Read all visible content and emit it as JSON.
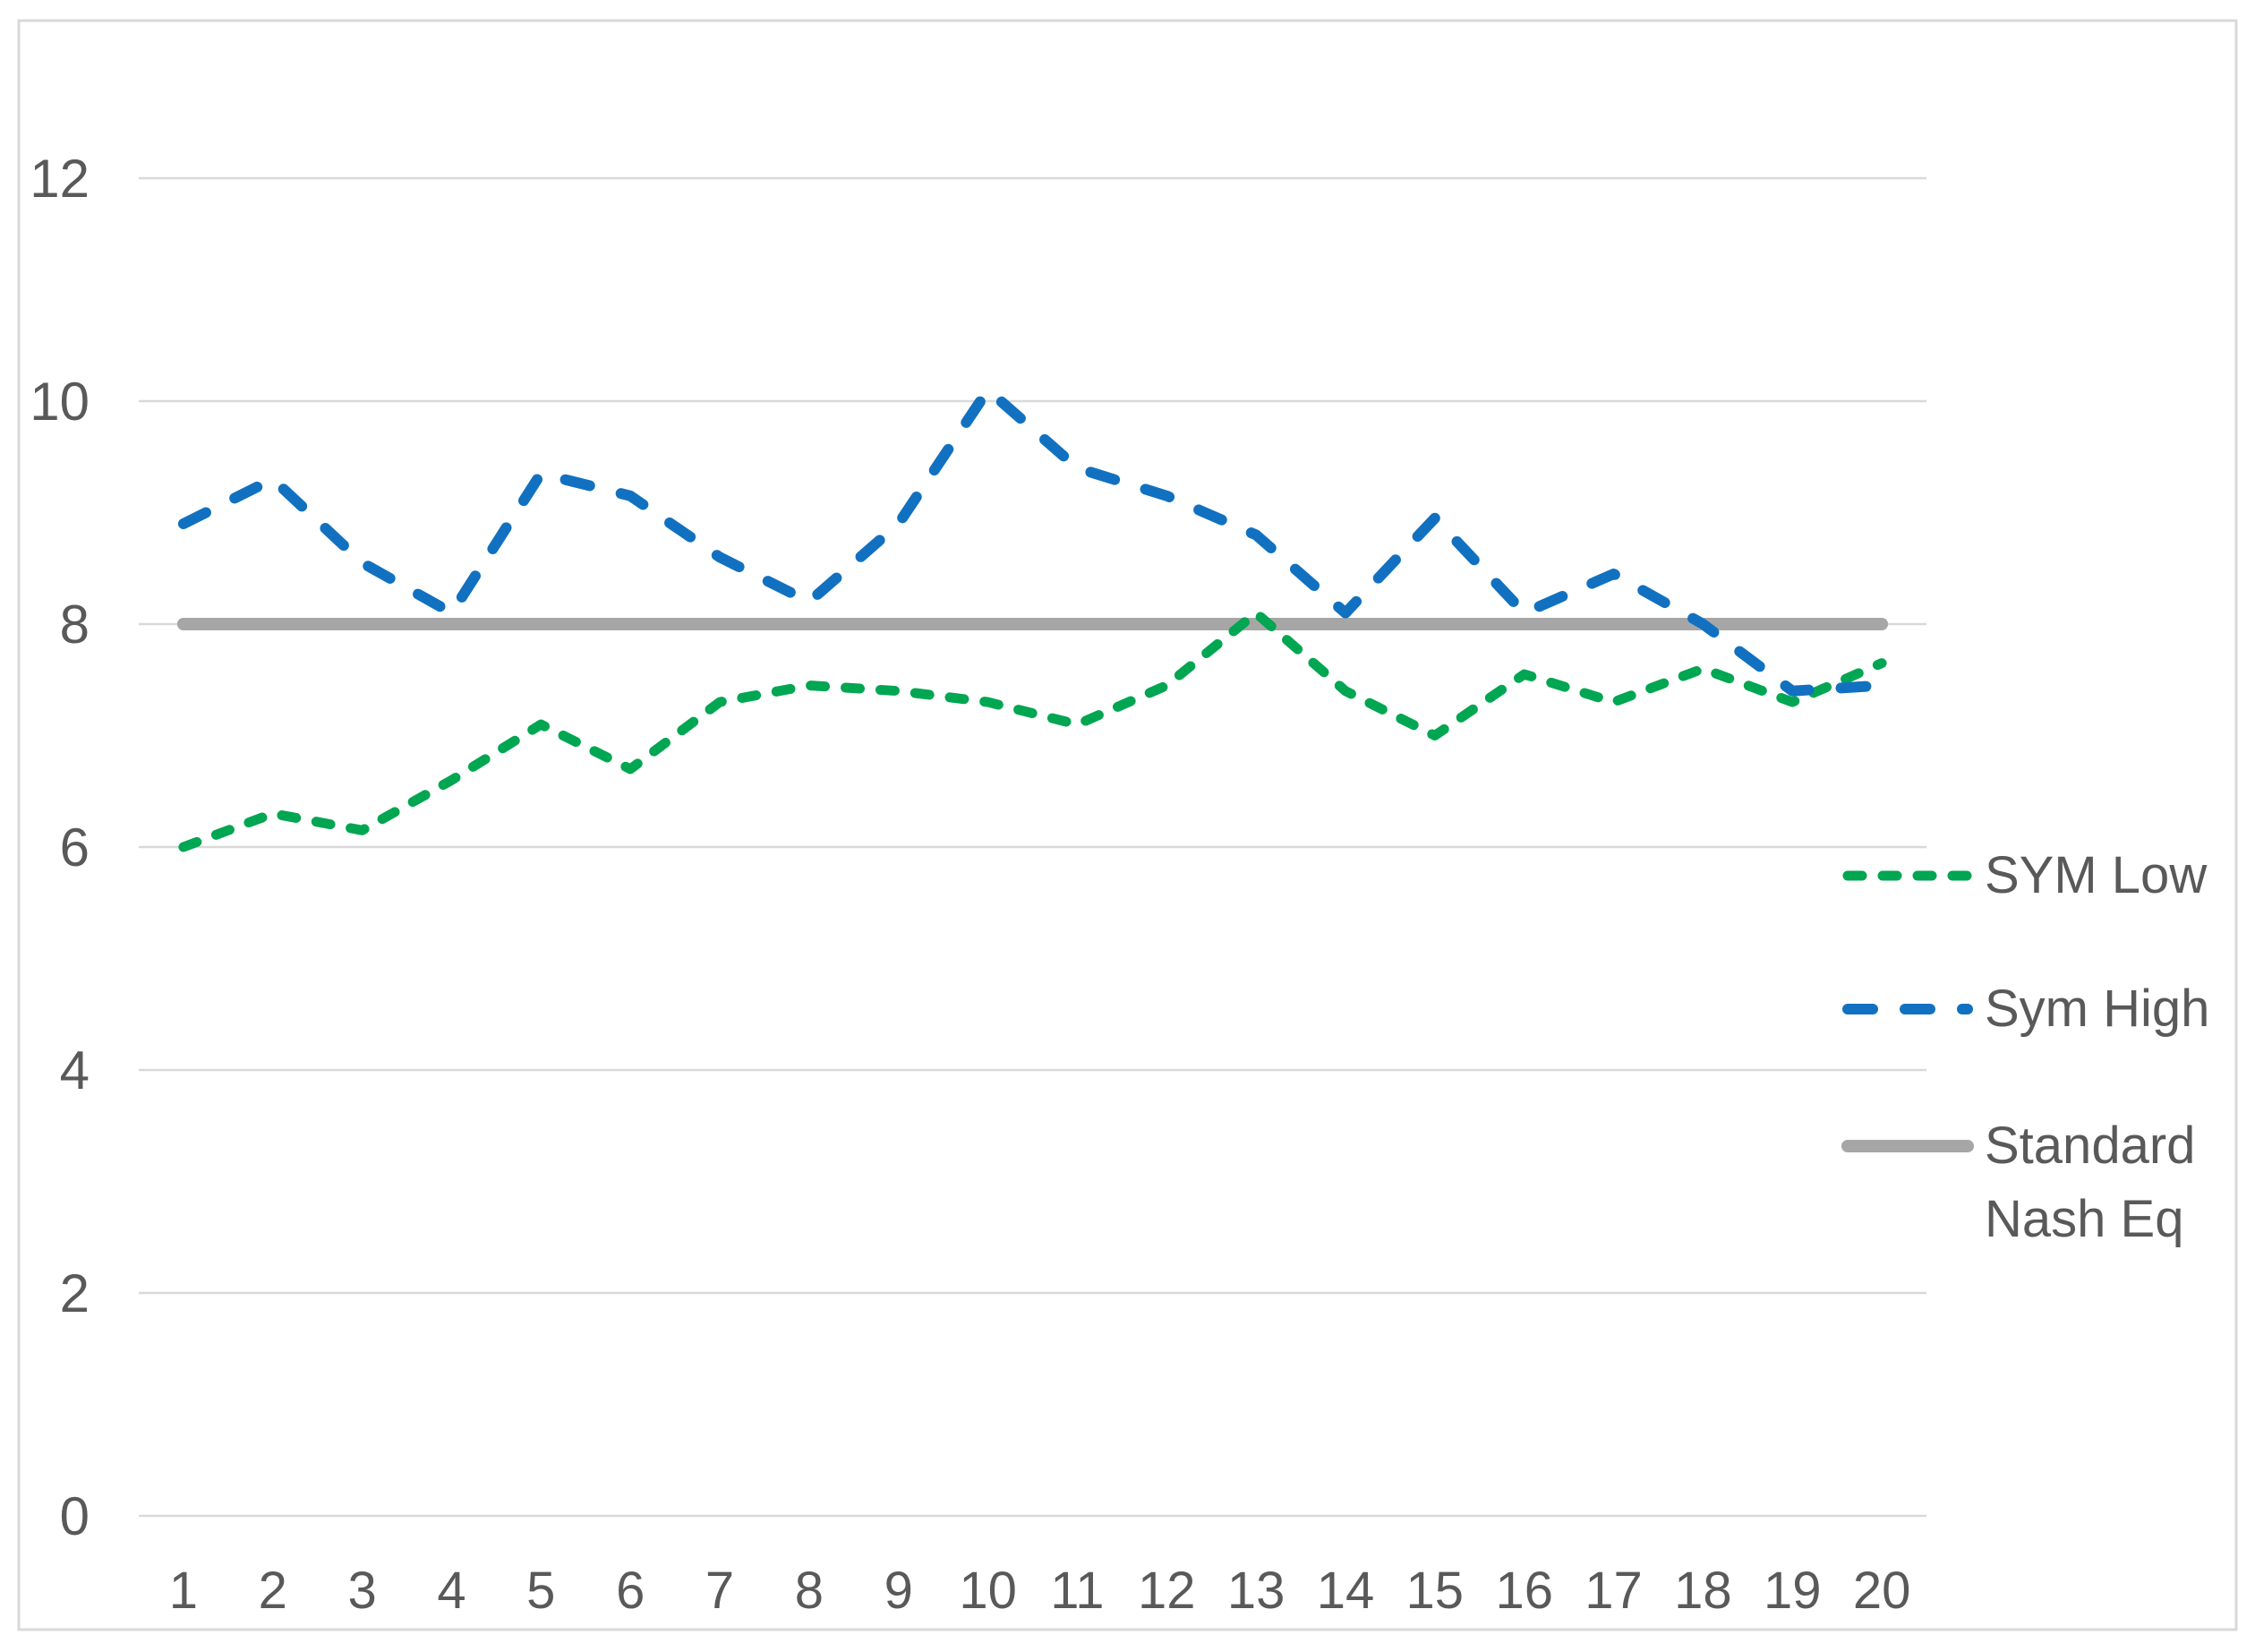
{
  "chart_data": {
    "type": "line",
    "title": "",
    "xlabel": "",
    "ylabel": "",
    "x": [
      1,
      2,
      3,
      4,
      5,
      6,
      7,
      8,
      9,
      10,
      11,
      12,
      13,
      14,
      15,
      16,
      17,
      18,
      19,
      20
    ],
    "ylim": [
      0,
      12
    ],
    "yticks": [
      0,
      2,
      4,
      6,
      8,
      10,
      12
    ],
    "grid": "horizontal-only",
    "legend_position": "right",
    "series": [
      {
        "name": "SYM Low",
        "color": "#00A651",
        "style": "dashed-short",
        "values": [
          6.0,
          6.3,
          6.15,
          6.6,
          7.1,
          6.7,
          7.3,
          7.45,
          7.4,
          7.3,
          7.1,
          7.45,
          8.1,
          7.4,
          7.0,
          7.55,
          7.3,
          7.6,
          7.3,
          7.65
        ]
      },
      {
        "name": "Sym High",
        "color": "#1171C0",
        "style": "dashed-long",
        "values": [
          8.9,
          9.3,
          8.55,
          8.1,
          9.35,
          9.15,
          8.6,
          8.2,
          8.9,
          10.1,
          9.4,
          9.15,
          8.8,
          8.1,
          8.95,
          8.1,
          8.45,
          8.0,
          7.4,
          7.45
        ]
      },
      {
        "name": "Standard Nash Eq",
        "color": "#A6A6A6",
        "style": "solid",
        "values": [
          8,
          8,
          8,
          8,
          8,
          8,
          8,
          8,
          8,
          8,
          8,
          8,
          8,
          8,
          8,
          8,
          8,
          8,
          8,
          8
        ]
      }
    ]
  },
  "colors": {
    "grid": "#D9D9D9",
    "frame_border": "#D9D9D9",
    "axis_text": "#595959",
    "background": "#FFFFFF"
  }
}
